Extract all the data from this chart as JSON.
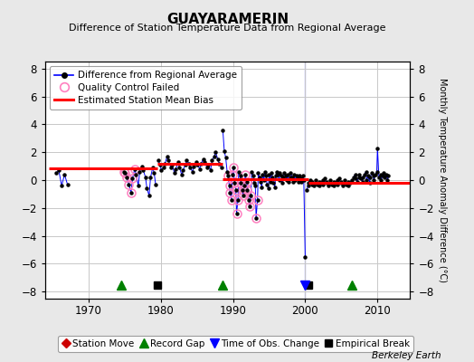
{
  "title": "GUAYARAMERIN",
  "subtitle": "Difference of Station Temperature Data from Regional Average",
  "ylabel_right": "Monthly Temperature Anomaly Difference (°C)",
  "ylim": [
    -8.5,
    8.5
  ],
  "xlim": [
    1964.0,
    2014.5
  ],
  "yticks": [
    -8,
    -6,
    -4,
    -2,
    0,
    2,
    4,
    6,
    8
  ],
  "xticks": [
    1970,
    1980,
    1990,
    2000,
    2010
  ],
  "bg_color": "#e8e8e8",
  "plot_bg_color": "#ffffff",
  "grid_color": "#c8c8c8",
  "main_line_color": "#0000ff",
  "main_dot_color": "#000000",
  "qc_fail_color": "#ff80c0",
  "bias_line_color": "#ff0000",
  "footer_text": "Berkeley Earth",
  "record_gaps": [
    1974.5,
    1988.5,
    2006.5
  ],
  "empirical_breaks": [
    1979.5,
    2000.5
  ],
  "time_obs_changes": [
    2000.0
  ],
  "bias_segments": [
    {
      "x": [
        1964.5,
        1979.5
      ],
      "y": [
        0.85,
        0.85
      ]
    },
    {
      "x": [
        1979.5,
        1988.5
      ],
      "y": [
        1.15,
        1.15
      ]
    },
    {
      "x": [
        1988.5,
        2000.5
      ],
      "y": [
        0.05,
        0.05
      ]
    },
    {
      "x": [
        2000.5,
        2014.5
      ],
      "y": [
        -0.2,
        -0.2
      ]
    }
  ],
  "seg0_x": [
    1965.5,
    1965.9,
    1966.3,
    1966.7,
    1967.1
  ],
  "seg0_y": [
    0.5,
    0.7,
    -0.4,
    0.4,
    -0.3
  ],
  "seg0_qc": [
    false,
    false,
    false,
    false,
    false
  ],
  "seg1_x": [
    1974.9,
    1975.1,
    1975.3,
    1975.6,
    1975.9,
    1976.1,
    1976.4,
    1976.6,
    1976.9,
    1977.1,
    1977.4,
    1977.6,
    1977.9,
    1978.1,
    1978.4,
    1978.6,
    1978.9,
    1979.1,
    1979.3
  ],
  "seg1_y": [
    0.6,
    0.5,
    0.2,
    -0.3,
    -0.9,
    0.1,
    0.8,
    0.4,
    -0.4,
    0.6,
    1.0,
    0.7,
    0.2,
    -0.6,
    -1.1,
    0.2,
    0.9,
    0.5,
    -0.3
  ],
  "seg1_qc": [
    true,
    true,
    true,
    true,
    true,
    true,
    true,
    false,
    false,
    false,
    false,
    false,
    false,
    false,
    false,
    false,
    false,
    false,
    false
  ],
  "seg2_x": [
    1979.7,
    1979.9,
    1980.1,
    1980.4,
    1980.6,
    1980.9,
    1981.1,
    1981.4,
    1981.6,
    1981.9,
    1982.1,
    1982.4,
    1982.6,
    1982.9,
    1983.1,
    1983.4,
    1983.6,
    1983.9,
    1984.1,
    1984.4,
    1984.6,
    1984.9,
    1985.1,
    1985.4,
    1985.6,
    1985.9,
    1986.1,
    1986.4,
    1986.6,
    1986.9,
    1987.1,
    1987.4,
    1987.6,
    1987.9,
    1988.1,
    1988.4
  ],
  "seg2_y": [
    1.4,
    1.1,
    0.7,
    0.9,
    1.2,
    1.7,
    1.4,
    0.9,
    1.1,
    0.5,
    0.8,
    1.3,
    0.9,
    0.4,
    0.7,
    1.1,
    1.4,
    1.2,
    0.9,
    0.6,
    1.0,
    1.3,
    1.1,
    0.8,
    1.2,
    1.5,
    1.3,
    0.9,
    1.1,
    0.7,
    1.4,
    1.7,
    2.0,
    1.5,
    1.2,
    0.9
  ],
  "seg2_qc": [
    false,
    false,
    false,
    false,
    false,
    false,
    false,
    false,
    false,
    false,
    false,
    false,
    false,
    false,
    false,
    false,
    false,
    false,
    false,
    false,
    false,
    false,
    false,
    false,
    false,
    false,
    false,
    false,
    false,
    false,
    false,
    false,
    false,
    false,
    false,
    false
  ],
  "seg3_x": [
    1988.6,
    1988.8,
    1989.0,
    1989.2,
    1989.3,
    1989.5,
    1989.6,
    1989.8,
    1989.9,
    1990.1,
    1990.2,
    1990.4,
    1990.5,
    1990.7,
    1990.8,
    1991.0,
    1991.1,
    1991.3,
    1991.4,
    1991.6,
    1991.7,
    1991.9,
    1992.0,
    1992.2,
    1992.3,
    1992.5,
    1992.6,
    1992.8,
    1992.9,
    1993.1,
    1993.2,
    1993.4,
    1993.5,
    1993.7,
    1993.8,
    1994.0,
    1994.1,
    1994.3,
    1994.4,
    1994.6,
    1994.7,
    1994.9,
    1995.0,
    1995.2,
    1995.3,
    1995.5,
    1995.6,
    1995.8,
    1995.9,
    1996.1,
    1996.2,
    1996.4,
    1996.5,
    1996.7,
    1996.8,
    1997.0,
    1997.1,
    1997.3,
    1997.4,
    1997.6,
    1997.7,
    1997.9,
    1998.0,
    1998.2,
    1998.3,
    1998.5,
    1998.6,
    1998.8,
    1998.9,
    1999.1,
    1999.2,
    1999.4,
    1999.5,
    1999.7,
    1999.8,
    2000.0
  ],
  "seg3_y": [
    3.6,
    2.1,
    1.6,
    0.6,
    0.3,
    -0.4,
    -0.9,
    -1.4,
    0.4,
    0.9,
    -0.2,
    -0.7,
    -2.4,
    -1.4,
    0.6,
    0.3,
    -0.2,
    -0.7,
    -1.1,
    -0.4,
    0.4,
    -0.1,
    -0.7,
    -1.4,
    -1.9,
    -1.1,
    0.6,
    0.3,
    -0.2,
    -0.4,
    -2.7,
    -1.4,
    0.5,
    0.2,
    -0.1,
    -0.5,
    0.4,
    0.0,
    0.6,
    0.3,
    -0.3,
    -0.6,
    0.4,
    -0.1,
    0.5,
    0.2,
    -0.2,
    -0.5,
    0.3,
    0.6,
    0.4,
    0.0,
    0.5,
    0.3,
    -0.2,
    0.2,
    0.5,
    0.3,
    0.0,
    0.4,
    -0.1,
    0.2,
    0.5,
    0.2,
    -0.1,
    0.4,
    0.0,
    0.3,
    0.1,
    -0.1,
    0.3,
    0.1,
    -0.1,
    0.3,
    0.0,
    -5.5
  ],
  "seg3_qc": [
    false,
    false,
    false,
    false,
    true,
    true,
    true,
    true,
    true,
    true,
    true,
    true,
    true,
    true,
    false,
    false,
    true,
    true,
    true,
    true,
    true,
    true,
    true,
    true,
    true,
    true,
    false,
    false,
    false,
    false,
    true,
    true,
    false,
    false,
    false,
    false,
    false,
    false,
    false,
    false,
    false,
    false,
    false,
    false,
    false,
    false,
    false,
    false,
    false,
    false,
    false,
    false,
    false,
    false,
    false,
    false,
    false,
    false,
    false,
    false,
    false,
    false,
    false,
    false,
    false,
    false,
    false,
    false,
    false,
    false,
    false,
    false,
    false,
    false,
    false,
    false
  ],
  "seg4_x": [
    2000.2,
    2000.4,
    2000.5,
    2000.7,
    2000.9,
    2001.0,
    2001.2,
    2001.4,
    2001.5,
    2001.7,
    2001.9,
    2002.0,
    2002.2,
    2002.4,
    2002.5,
    2002.7,
    2002.9,
    2003.0,
    2003.2,
    2003.4,
    2003.5,
    2003.7,
    2003.9,
    2004.0,
    2004.2,
    2004.4,
    2004.5,
    2004.7,
    2004.9,
    2005.0,
    2005.2,
    2005.4,
    2005.5,
    2005.7,
    2005.9,
    2006.0,
    2006.2,
    2006.4
  ],
  "seg4_y": [
    -0.7,
    -0.4,
    -0.2,
    0.0,
    -0.3,
    -0.1,
    -0.4,
    -0.2,
    0.0,
    -0.3,
    -0.1,
    -0.4,
    -0.2,
    0.0,
    -0.3,
    0.1,
    -0.2,
    -0.1,
    -0.4,
    -0.2,
    0.0,
    -0.3,
    -0.1,
    -0.4,
    -0.2,
    0.0,
    -0.3,
    0.1,
    -0.2,
    -0.1,
    -0.4,
    -0.2,
    0.0,
    -0.3,
    -0.1,
    -0.4,
    -0.2,
    0.0
  ],
  "seg4_qc": [
    false,
    false,
    false,
    false,
    false,
    false,
    false,
    false,
    false,
    false,
    false,
    false,
    false,
    false,
    false,
    false,
    false,
    false,
    false,
    false,
    false,
    false,
    false,
    false,
    false,
    false,
    false,
    false,
    false,
    false,
    false,
    false,
    false,
    false,
    false,
    false,
    false,
    false
  ],
  "seg5_x": [
    2006.7,
    2006.9,
    2007.0,
    2007.2,
    2007.4,
    2007.5,
    2007.7,
    2007.9,
    2008.0,
    2008.2,
    2008.4,
    2008.5,
    2008.7,
    2008.9,
    2009.0,
    2009.2,
    2009.4,
    2009.5,
    2009.7,
    2009.9,
    2010.0,
    2010.2,
    2010.4,
    2010.5,
    2010.7,
    2010.9,
    2011.0,
    2011.2,
    2011.4,
    2011.5
  ],
  "seg5_y": [
    0.2,
    0.4,
    0.1,
    -0.1,
    0.2,
    0.4,
    0.1,
    -0.1,
    0.2,
    0.4,
    0.6,
    0.0,
    0.3,
    -0.2,
    0.2,
    0.5,
    0.3,
    0.0,
    0.4,
    0.6,
    2.3,
    0.2,
    0.4,
    0.0,
    0.3,
    0.5,
    0.2,
    0.4,
    0.0,
    0.3
  ],
  "seg5_qc": [
    false,
    false,
    false,
    false,
    false,
    false,
    false,
    false,
    false,
    false,
    false,
    false,
    false,
    false,
    false,
    false,
    false,
    false,
    false,
    false,
    false,
    false,
    false,
    false,
    false,
    false,
    false,
    false,
    false,
    false
  ]
}
